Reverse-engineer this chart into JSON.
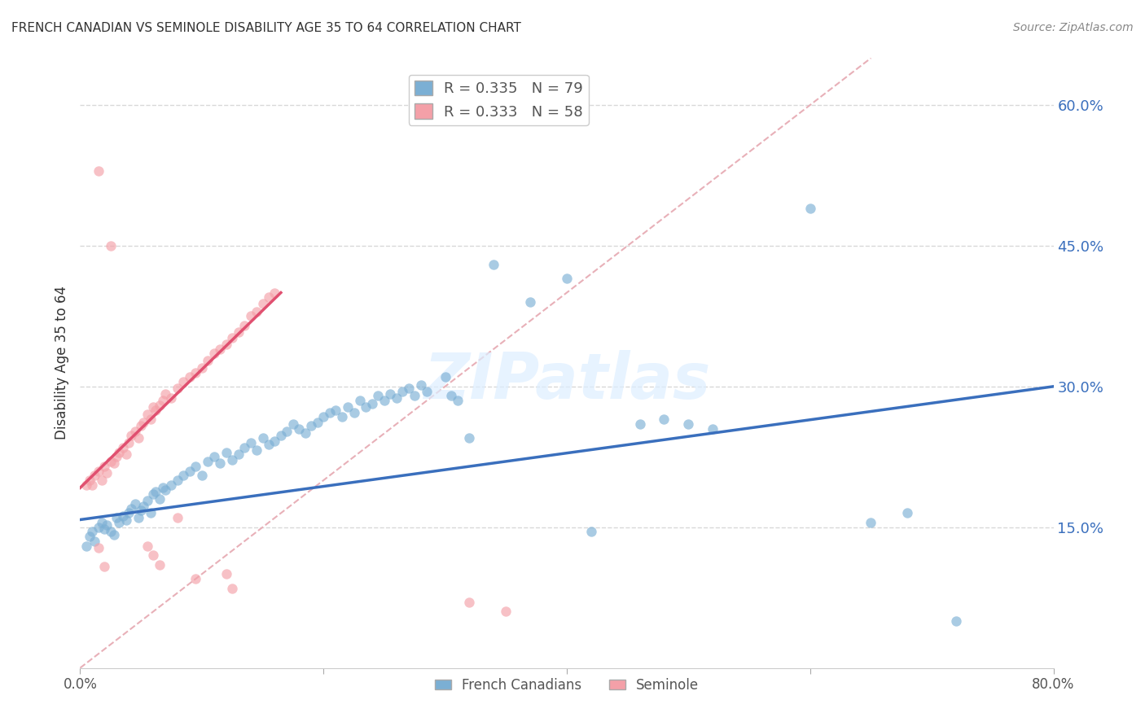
{
  "title": "FRENCH CANADIAN VS SEMINOLE DISABILITY AGE 35 TO 64 CORRELATION CHART",
  "source": "Source: ZipAtlas.com",
  "ylabel": "Disability Age 35 to 64",
  "x_min": 0.0,
  "x_max": 0.8,
  "y_min": 0.0,
  "y_max": 0.65,
  "x_ticks": [
    0.0,
    0.2,
    0.4,
    0.6,
    0.8
  ],
  "x_tick_labels": [
    "0.0%",
    "",
    "",
    "",
    "80.0%"
  ],
  "y_ticks": [
    0.15,
    0.3,
    0.45,
    0.6
  ],
  "y_tick_labels": [
    "15.0%",
    "30.0%",
    "45.0%",
    "60.0%"
  ],
  "watermark": "ZIPatlas",
  "blue_color": "#7bafd4",
  "pink_color": "#f4a0a8",
  "blue_line_color": "#3a6fbd",
  "pink_line_color": "#e05070",
  "diag_line_color": "#e8b0b8",
  "grid_color": "#d8d8d8",
  "blue_scatter": [
    [
      0.005,
      0.13
    ],
    [
      0.008,
      0.14
    ],
    [
      0.01,
      0.145
    ],
    [
      0.012,
      0.135
    ],
    [
      0.015,
      0.15
    ],
    [
      0.018,
      0.155
    ],
    [
      0.02,
      0.148
    ],
    [
      0.022,
      0.152
    ],
    [
      0.025,
      0.145
    ],
    [
      0.028,
      0.142
    ],
    [
      0.03,
      0.16
    ],
    [
      0.032,
      0.155
    ],
    [
      0.035,
      0.162
    ],
    [
      0.038,
      0.158
    ],
    [
      0.04,
      0.165
    ],
    [
      0.042,
      0.17
    ],
    [
      0.045,
      0.175
    ],
    [
      0.048,
      0.16
    ],
    [
      0.05,
      0.168
    ],
    [
      0.052,
      0.172
    ],
    [
      0.055,
      0.178
    ],
    [
      0.058,
      0.165
    ],
    [
      0.06,
      0.185
    ],
    [
      0.062,
      0.188
    ],
    [
      0.065,
      0.18
    ],
    [
      0.068,
      0.192
    ],
    [
      0.07,
      0.19
    ],
    [
      0.075,
      0.195
    ],
    [
      0.08,
      0.2
    ],
    [
      0.085,
      0.205
    ],
    [
      0.09,
      0.21
    ],
    [
      0.095,
      0.215
    ],
    [
      0.1,
      0.205
    ],
    [
      0.105,
      0.22
    ],
    [
      0.11,
      0.225
    ],
    [
      0.115,
      0.218
    ],
    [
      0.12,
      0.23
    ],
    [
      0.125,
      0.222
    ],
    [
      0.13,
      0.228
    ],
    [
      0.135,
      0.235
    ],
    [
      0.14,
      0.24
    ],
    [
      0.145,
      0.232
    ],
    [
      0.15,
      0.245
    ],
    [
      0.155,
      0.238
    ],
    [
      0.16,
      0.242
    ],
    [
      0.165,
      0.248
    ],
    [
      0.17,
      0.252
    ],
    [
      0.175,
      0.26
    ],
    [
      0.18,
      0.255
    ],
    [
      0.185,
      0.25
    ],
    [
      0.19,
      0.258
    ],
    [
      0.195,
      0.262
    ],
    [
      0.2,
      0.268
    ],
    [
      0.205,
      0.272
    ],
    [
      0.21,
      0.275
    ],
    [
      0.215,
      0.268
    ],
    [
      0.22,
      0.278
    ],
    [
      0.225,
      0.272
    ],
    [
      0.23,
      0.285
    ],
    [
      0.235,
      0.278
    ],
    [
      0.24,
      0.282
    ],
    [
      0.245,
      0.29
    ],
    [
      0.25,
      0.285
    ],
    [
      0.255,
      0.292
    ],
    [
      0.26,
      0.288
    ],
    [
      0.265,
      0.295
    ],
    [
      0.27,
      0.298
    ],
    [
      0.275,
      0.29
    ],
    [
      0.28,
      0.302
    ],
    [
      0.285,
      0.295
    ],
    [
      0.3,
      0.31
    ],
    [
      0.305,
      0.29
    ],
    [
      0.31,
      0.285
    ],
    [
      0.32,
      0.245
    ],
    [
      0.34,
      0.43
    ],
    [
      0.37,
      0.39
    ],
    [
      0.4,
      0.415
    ],
    [
      0.42,
      0.145
    ],
    [
      0.46,
      0.26
    ],
    [
      0.48,
      0.265
    ],
    [
      0.5,
      0.26
    ],
    [
      0.52,
      0.255
    ],
    [
      0.6,
      0.49
    ],
    [
      0.65,
      0.155
    ],
    [
      0.68,
      0.165
    ],
    [
      0.72,
      0.05
    ]
  ],
  "pink_scatter": [
    [
      0.005,
      0.195
    ],
    [
      0.008,
      0.2
    ],
    [
      0.01,
      0.195
    ],
    [
      0.012,
      0.205
    ],
    [
      0.015,
      0.21
    ],
    [
      0.018,
      0.2
    ],
    [
      0.02,
      0.215
    ],
    [
      0.022,
      0.208
    ],
    [
      0.025,
      0.22
    ],
    [
      0.028,
      0.218
    ],
    [
      0.03,
      0.225
    ],
    [
      0.032,
      0.23
    ],
    [
      0.035,
      0.235
    ],
    [
      0.038,
      0.228
    ],
    [
      0.04,
      0.24
    ],
    [
      0.042,
      0.248
    ],
    [
      0.045,
      0.252
    ],
    [
      0.048,
      0.245
    ],
    [
      0.05,
      0.258
    ],
    [
      0.052,
      0.262
    ],
    [
      0.055,
      0.27
    ],
    [
      0.058,
      0.265
    ],
    [
      0.06,
      0.278
    ],
    [
      0.062,
      0.275
    ],
    [
      0.065,
      0.28
    ],
    [
      0.068,
      0.285
    ],
    [
      0.07,
      0.292
    ],
    [
      0.075,
      0.288
    ],
    [
      0.08,
      0.298
    ],
    [
      0.085,
      0.305
    ],
    [
      0.09,
      0.31
    ],
    [
      0.095,
      0.315
    ],
    [
      0.1,
      0.32
    ],
    [
      0.105,
      0.328
    ],
    [
      0.11,
      0.335
    ],
    [
      0.115,
      0.34
    ],
    [
      0.12,
      0.345
    ],
    [
      0.125,
      0.352
    ],
    [
      0.13,
      0.358
    ],
    [
      0.135,
      0.365
    ],
    [
      0.14,
      0.375
    ],
    [
      0.145,
      0.38
    ],
    [
      0.15,
      0.388
    ],
    [
      0.155,
      0.395
    ],
    [
      0.16,
      0.4
    ],
    [
      0.015,
      0.53
    ],
    [
      0.025,
      0.45
    ],
    [
      0.015,
      0.128
    ],
    [
      0.02,
      0.108
    ],
    [
      0.055,
      0.13
    ],
    [
      0.06,
      0.12
    ],
    [
      0.065,
      0.11
    ],
    [
      0.08,
      0.16
    ],
    [
      0.095,
      0.095
    ],
    [
      0.12,
      0.1
    ],
    [
      0.125,
      0.085
    ],
    [
      0.32,
      0.07
    ],
    [
      0.35,
      0.06
    ]
  ],
  "blue_line_x": [
    0.0,
    0.8
  ],
  "blue_line_y": [
    0.158,
    0.3
  ],
  "pink_line_x": [
    0.0,
    0.165
  ],
  "pink_line_y": [
    0.192,
    0.4
  ],
  "diag_line_x": [
    0.0,
    0.65
  ],
  "diag_line_y": [
    0.0,
    0.65
  ]
}
